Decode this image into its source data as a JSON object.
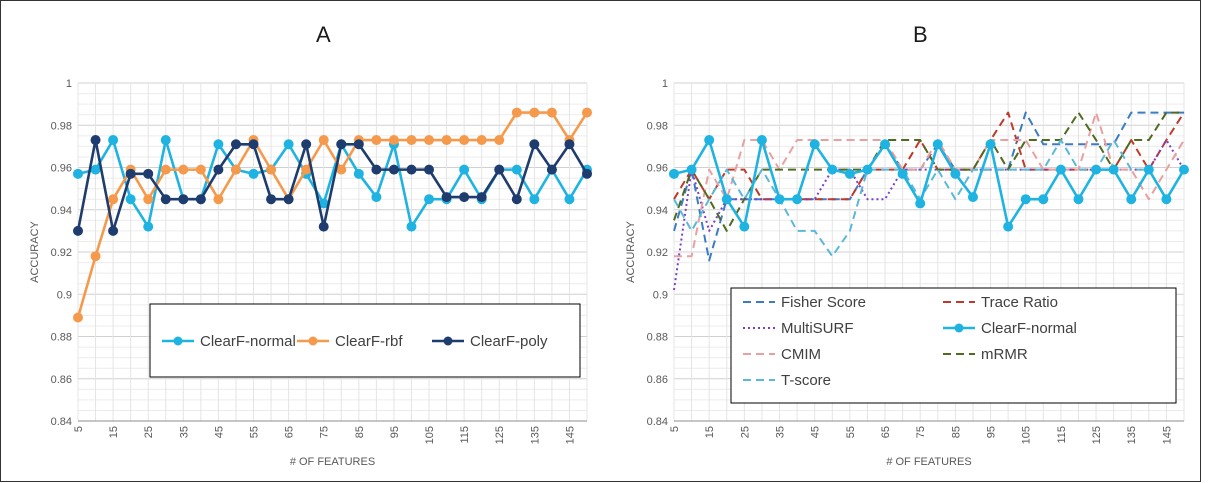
{
  "panel_titles": [
    "A",
    "B"
  ],
  "chart_data": [
    {
      "type": "line",
      "title": "A",
      "xlabel": "# OF FEATURES",
      "ylabel": "ACCURACY",
      "ylim": [
        0.84,
        1.0
      ],
      "yticks": [
        0.84,
        0.86,
        0.88,
        0.9,
        0.92,
        0.94,
        0.96,
        0.98,
        1
      ],
      "ytick_labels": [
        "0.84",
        "0.86",
        "0.88",
        "0.9",
        "0.92",
        "0.94",
        "0.96",
        "0.98",
        "1"
      ],
      "x": [
        5,
        10,
        15,
        20,
        25,
        30,
        35,
        40,
        45,
        50,
        55,
        60,
        65,
        70,
        75,
        80,
        85,
        90,
        95,
        100,
        105,
        110,
        115,
        120,
        125,
        130,
        135,
        140,
        145,
        150
      ],
      "xtick_labels": [
        "5",
        "15",
        "25",
        "35",
        "45",
        "55",
        "65",
        "75",
        "85",
        "95",
        "105",
        "115",
        "125",
        "135",
        "145"
      ],
      "grid": true,
      "legend_position": "inside-bottom-right",
      "series": [
        {
          "name": "ClearF-normal",
          "color": "#1fb3e2",
          "style": "solid",
          "marker": true,
          "values": [
            0.957,
            0.959,
            0.973,
            0.945,
            0.932,
            0.973,
            0.945,
            0.945,
            0.971,
            0.959,
            0.957,
            0.959,
            0.971,
            0.957,
            0.943,
            0.971,
            0.957,
            0.946,
            0.971,
            0.932,
            0.945,
            0.945,
            0.959,
            0.945,
            0.959,
            0.959,
            0.945,
            0.959,
            0.945,
            0.959
          ]
        },
        {
          "name": "ClearF-rbf",
          "color": "#f59a4c",
          "style": "solid",
          "marker": true,
          "values": [
            0.889,
            0.918,
            0.945,
            0.959,
            0.945,
            0.959,
            0.959,
            0.959,
            0.945,
            0.959,
            0.973,
            0.959,
            0.945,
            0.959,
            0.973,
            0.959,
            0.973,
            0.973,
            0.973,
            0.973,
            0.973,
            0.973,
            0.973,
            0.973,
            0.973,
            0.986,
            0.986,
            0.986,
            0.973,
            0.986
          ]
        },
        {
          "name": "ClearF-poly",
          "color": "#1f3c6e",
          "style": "solid",
          "marker": true,
          "values": [
            0.93,
            0.973,
            0.93,
            0.957,
            0.957,
            0.945,
            0.945,
            0.945,
            0.959,
            0.971,
            0.971,
            0.945,
            0.945,
            0.971,
            0.932,
            0.971,
            0.971,
            0.959,
            0.959,
            0.959,
            0.959,
            0.946,
            0.946,
            0.946,
            0.959,
            0.945,
            0.971,
            0.959,
            0.971,
            0.957
          ]
        }
      ]
    },
    {
      "type": "line",
      "title": "B",
      "xlabel": "# OF FEATURES",
      "ylabel": "ACCURACY",
      "ylim": [
        0.84,
        1.0
      ],
      "yticks": [
        0.84,
        0.86,
        0.88,
        0.9,
        0.92,
        0.94,
        0.96,
        0.98,
        1
      ],
      "ytick_labels": [
        "0.84",
        "0.86",
        "0.88",
        "0.9",
        "0.92",
        "0.94",
        "0.96",
        "0.98",
        "1"
      ],
      "x": [
        5,
        10,
        15,
        20,
        25,
        30,
        35,
        40,
        45,
        50,
        55,
        60,
        65,
        70,
        75,
        80,
        85,
        90,
        95,
        100,
        105,
        110,
        115,
        120,
        125,
        130,
        135,
        140,
        145,
        150
      ],
      "xtick_labels": [
        "5",
        "15",
        "25",
        "35",
        "45",
        "55",
        "65",
        "75",
        "85",
        "95",
        "105",
        "115",
        "125",
        "135",
        "145"
      ],
      "grid": true,
      "legend_position": "inside-bottom",
      "series": [
        {
          "name": "Fisher Score",
          "color": "#3b7cc4",
          "style": "dash",
          "marker": false,
          "values": [
            0.93,
            0.959,
            0.916,
            0.945,
            0.945,
            0.945,
            0.945,
            0.945,
            0.945,
            0.945,
            0.945,
            0.959,
            0.971,
            0.959,
            0.959,
            0.971,
            0.959,
            0.959,
            0.959,
            0.959,
            0.986,
            0.971,
            0.971,
            0.971,
            0.971,
            0.971,
            0.986,
            0.986,
            0.986,
            0.986
          ]
        },
        {
          "name": "Trace Ratio",
          "color": "#c0392b",
          "style": "dash",
          "marker": false,
          "values": [
            0.945,
            0.959,
            0.945,
            0.959,
            0.959,
            0.945,
            0.945,
            0.945,
            0.945,
            0.945,
            0.945,
            0.959,
            0.959,
            0.959,
            0.973,
            0.959,
            0.959,
            0.959,
            0.973,
            0.986,
            0.959,
            0.959,
            0.959,
            0.959,
            0.959,
            0.959,
            0.973,
            0.959,
            0.973,
            0.986
          ]
        },
        {
          "name": "MultiSURF",
          "color": "#7b3fc4",
          "style": "dot",
          "marker": false,
          "values": [
            0.902,
            0.959,
            0.93,
            0.945,
            0.945,
            0.945,
            0.945,
            0.945,
            0.945,
            0.959,
            0.959,
            0.945,
            0.945,
            0.959,
            0.959,
            0.959,
            0.959,
            0.959,
            0.959,
            0.959,
            0.959,
            0.959,
            0.959,
            0.959,
            0.959,
            0.959,
            0.959,
            0.959,
            0.973,
            0.959
          ]
        },
        {
          "name": "ClearF-normal",
          "color": "#1fb3e2",
          "style": "solid",
          "marker": true,
          "values": [
            0.957,
            0.959,
            0.973,
            0.945,
            0.932,
            0.973,
            0.945,
            0.945,
            0.971,
            0.959,
            0.957,
            0.959,
            0.971,
            0.957,
            0.943,
            0.971,
            0.957,
            0.946,
            0.971,
            0.932,
            0.945,
            0.945,
            0.959,
            0.945,
            0.959,
            0.959,
            0.945,
            0.959,
            0.945,
            0.959
          ]
        },
        {
          "name": "CMIM",
          "color": "#e8a0a0",
          "style": "dash",
          "marker": false,
          "values": [
            0.918,
            0.918,
            0.959,
            0.945,
            0.973,
            0.973,
            0.959,
            0.973,
            0.973,
            0.973,
            0.973,
            0.973,
            0.973,
            0.959,
            0.959,
            0.973,
            0.959,
            0.959,
            0.973,
            0.973,
            0.973,
            0.959,
            0.959,
            0.959,
            0.986,
            0.959,
            0.959,
            0.945,
            0.959,
            0.973
          ]
        },
        {
          "name": "mRMR",
          "color": "#4f6b1f",
          "style": "dash",
          "marker": false,
          "values": [
            0.935,
            0.959,
            0.945,
            0.93,
            0.945,
            0.959,
            0.959,
            0.959,
            0.959,
            0.959,
            0.959,
            0.959,
            0.973,
            0.973,
            0.973,
            0.959,
            0.959,
            0.959,
            0.973,
            0.959,
            0.973,
            0.973,
            0.973,
            0.986,
            0.973,
            0.959,
            0.973,
            0.973,
            0.986,
            0.986
          ]
        },
        {
          "name": "T-score",
          "color": "#5bb8d6",
          "style": "dash",
          "marker": false,
          "values": [
            0.945,
            0.93,
            0.945,
            0.959,
            0.945,
            0.959,
            0.945,
            0.93,
            0.93,
            0.918,
            0.93,
            0.959,
            0.959,
            0.959,
            0.945,
            0.959,
            0.945,
            0.959,
            0.959,
            0.959,
            0.959,
            0.959,
            0.973,
            0.959,
            0.959,
            0.973,
            0.959,
            0.959,
            0.945,
            0.959
          ]
        }
      ]
    }
  ]
}
